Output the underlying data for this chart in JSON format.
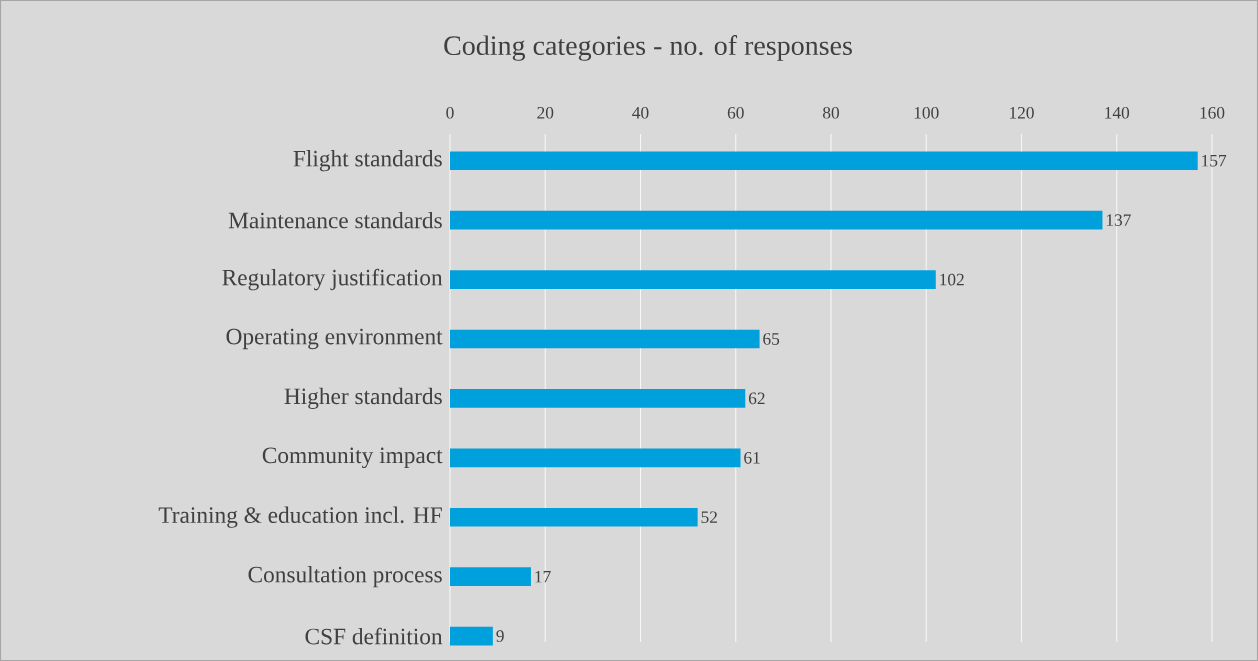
{
  "chart_data": {
    "type": "bar",
    "orientation": "horizontal",
    "title": "Coding categories - no. of responses",
    "categories": [
      "Flight standards",
      "Maintenance standards",
      "Regulatory justification",
      "Operating environment",
      "Higher standards",
      "Community impact",
      "Training & education incl. HF",
      "Consultation process",
      "CSF definition"
    ],
    "values": [
      157,
      137,
      102,
      65,
      62,
      61,
      52,
      17,
      9
    ],
    "color": "#00a0dc",
    "xlim": [
      0,
      160
    ],
    "xticks": [
      0,
      20,
      40,
      60,
      80,
      100,
      120,
      140,
      160
    ],
    "grid": "x",
    "data_labels": true
  }
}
